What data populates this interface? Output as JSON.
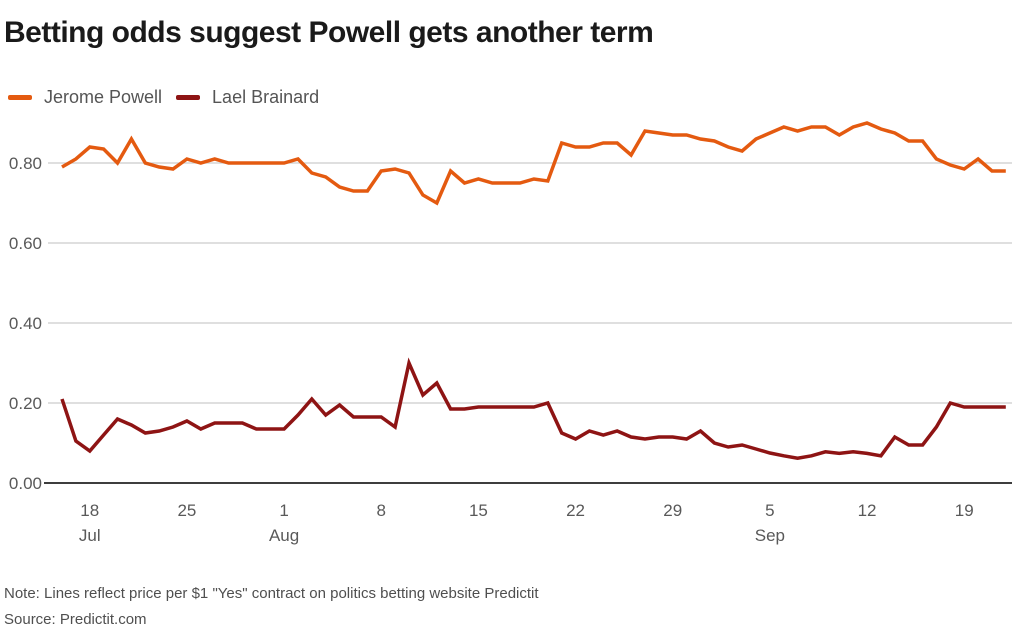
{
  "title": "Betting odds suggest Powell gets another term",
  "legend": [
    {
      "label": "Jerome Powell",
      "color": "#e45a10"
    },
    {
      "label": "Lael Brainard",
      "color": "#8e1414"
    }
  ],
  "note": "Note: Lines reflect price per $1 \"Yes\" contract on politics betting website Predictit",
  "source": "Source: Predictit.com",
  "colors": {
    "powell_line": "#e45a10",
    "brainard_line": "#8e1414",
    "gridline": "#cccccc",
    "zero_axis": "#3d3d3d",
    "axis_text": "#595959",
    "title_text": "#1a1a1a"
  },
  "chart_data": {
    "type": "line",
    "x_start_date": "Jul 16",
    "x_end_date": "Sep 22",
    "x_unit": "day",
    "ylim": [
      0,
      0.92
    ],
    "grid": "horizontal",
    "legend_position": "top-left",
    "y_ticks": [
      {
        "label": "0.80",
        "value": 0.8
      },
      {
        "label": "0.60",
        "value": 0.6
      },
      {
        "label": "0.40",
        "value": 0.4
      },
      {
        "label": "0.20",
        "value": 0.2
      },
      {
        "label": "0.00",
        "value": 0.0
      }
    ],
    "x_ticks": [
      {
        "label": "18",
        "day_index": 2,
        "month": "Jul"
      },
      {
        "label": "25",
        "day_index": 9
      },
      {
        "label": "1",
        "day_index": 16,
        "month": "Aug"
      },
      {
        "label": "8",
        "day_index": 23
      },
      {
        "label": "15",
        "day_index": 30
      },
      {
        "label": "22",
        "day_index": 37
      },
      {
        "label": "29",
        "day_index": 44
      },
      {
        "label": "5",
        "day_index": 51,
        "month": "Sep"
      },
      {
        "label": "12",
        "day_index": 58
      },
      {
        "label": "19",
        "day_index": 65
      }
    ],
    "series": [
      {
        "name": "Jerome Powell",
        "color": "#e45a10",
        "values": [
          0.79,
          0.81,
          0.84,
          0.835,
          0.8,
          0.86,
          0.8,
          0.79,
          0.785,
          0.81,
          0.8,
          0.81,
          0.8,
          0.8,
          0.8,
          0.8,
          0.8,
          0.81,
          0.775,
          0.765,
          0.74,
          0.73,
          0.73,
          0.78,
          0.785,
          0.775,
          0.72,
          0.7,
          0.78,
          0.75,
          0.76,
          0.75,
          0.75,
          0.75,
          0.76,
          0.755,
          0.85,
          0.84,
          0.84,
          0.85,
          0.85,
          0.82,
          0.88,
          0.875,
          0.87,
          0.87,
          0.86,
          0.855,
          0.84,
          0.83,
          0.86,
          0.875,
          0.89,
          0.88,
          0.89,
          0.89,
          0.87,
          0.89,
          0.9,
          0.885,
          0.875,
          0.855,
          0.855,
          0.81,
          0.795,
          0.785,
          0.81,
          0.78,
          0.78
        ]
      },
      {
        "name": "Lael Brainard",
        "color": "#8e1414",
        "values": [
          0.21,
          0.105,
          0.08,
          0.12,
          0.16,
          0.145,
          0.125,
          0.13,
          0.14,
          0.155,
          0.135,
          0.15,
          0.15,
          0.15,
          0.135,
          0.135,
          0.135,
          0.17,
          0.21,
          0.17,
          0.195,
          0.165,
          0.165,
          0.165,
          0.14,
          0.3,
          0.22,
          0.25,
          0.185,
          0.185,
          0.19,
          0.19,
          0.19,
          0.19,
          0.19,
          0.2,
          0.125,
          0.11,
          0.13,
          0.12,
          0.13,
          0.115,
          0.11,
          0.115,
          0.115,
          0.11,
          0.13,
          0.1,
          0.09,
          0.095,
          0.085,
          0.075,
          0.068,
          0.062,
          0.068,
          0.078,
          0.074,
          0.078,
          0.074,
          0.068,
          0.115,
          0.095,
          0.095,
          0.14,
          0.2,
          0.19,
          0.19,
          0.19,
          0.19
        ]
      }
    ]
  }
}
